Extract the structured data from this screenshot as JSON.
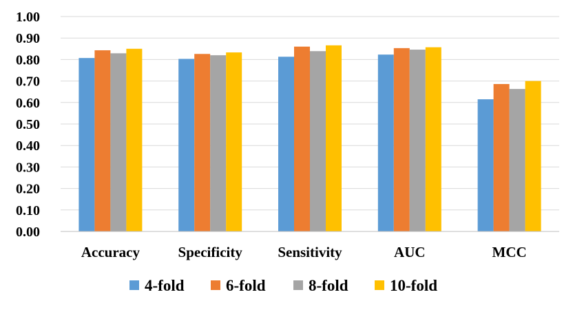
{
  "chart_data": {
    "type": "bar",
    "categories": [
      "Accuracy",
      "Specificity",
      "Sensitivity",
      "AUC",
      "MCC"
    ],
    "series": [
      {
        "name": "4-fold",
        "color": "#5b9bd5",
        "values": [
          0.807,
          0.803,
          0.813,
          0.823,
          0.615
        ]
      },
      {
        "name": "6-fold",
        "color": "#ed7d31",
        "values": [
          0.843,
          0.826,
          0.86,
          0.853,
          0.686
        ]
      },
      {
        "name": "8-fold",
        "color": "#a5a5a5",
        "values": [
          0.829,
          0.82,
          0.839,
          0.846,
          0.663
        ]
      },
      {
        "name": "10-fold",
        "color": "#ffc000",
        "values": [
          0.85,
          0.833,
          0.866,
          0.857,
          0.7
        ]
      }
    ],
    "ylim": [
      0,
      1.0
    ],
    "yticks": [
      "0.00",
      "0.10",
      "0.20",
      "0.30",
      "0.40",
      "0.50",
      "0.60",
      "0.70",
      "0.80",
      "0.90",
      "1.00"
    ],
    "grid": true,
    "legend_position": "bottom",
    "title": "",
    "xlabel": "",
    "ylabel": ""
  }
}
